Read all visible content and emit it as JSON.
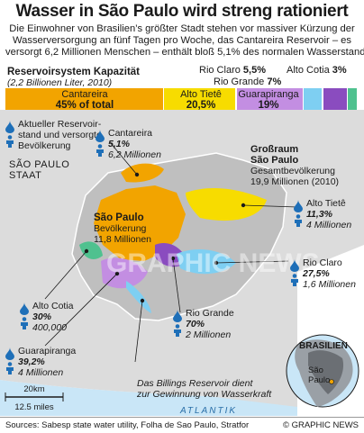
{
  "title": "Wasser in São Paulo wird streng rationiert",
  "intro": [
    "Die Einwohner von Brasilien’s größter Stadt stehen vor massiver Kürzung der",
    "Wasserversorgung an fünf Tagen pro Woche,  das Cantareira Reservoir – es",
    "versorgt 6,2 Millionen Menschen – enthält bloß 5,1% des normalen Wasserstandes"
  ],
  "capacity": {
    "title": "Reservoirsystem Kapazität",
    "subtitle": "(2,2 Billionen Liter, 2010)",
    "segments": [
      {
        "name": "Cantareira",
        "value_label": "45% of total",
        "percent": 45,
        "color": "#f2a400"
      },
      {
        "name": "Alto Tietê",
        "value_label": "20,5%",
        "percent": 20.5,
        "color": "#f7dc00"
      },
      {
        "name": "Guarapiranga",
        "value_label": "19%",
        "percent": 19,
        "color": "#c38ee2"
      },
      {
        "name": "Rio Claro",
        "value_label": "5,5%",
        "percent": 5.5,
        "color": "#7ecff2"
      },
      {
        "name": "Rio Grande",
        "value_label": "7%",
        "percent": 7,
        "color": "#8a4cbf"
      },
      {
        "name": "Alto Cotia",
        "value_label": "3%",
        "percent": 3,
        "color": "#4fc18f"
      }
    ]
  },
  "legend": {
    "pin_label": [
      "Aktueller Reservoir-",
      "stand und versorgte",
      "Bevölkerung"
    ]
  },
  "map": {
    "state_label": [
      "SÃO PAULO",
      "STAAT"
    ],
    "city_label": "São Paulo",
    "city_pop": [
      "Bevölkerung",
      "11,8 Millionen"
    ],
    "metro_label": [
      "Großraum",
      "São Paulo"
    ],
    "metro_pop": [
      "Gesamtbevölkerung",
      "19,9 Millionen (2010)"
    ],
    "ocean": "ATLANTIK",
    "billings_note": [
      "Das Billings Reservoir dient",
      "zur Gewinnung von Wasserkraft"
    ],
    "scale_km": "20km",
    "scale_mi": "12.5 miles",
    "watermark": "GRAPHIC NEWS",
    "inset_country": "BRASILIEN",
    "inset_city": [
      "São",
      "Paulo"
    ]
  },
  "reservoirs": [
    {
      "name": "Cantareira",
      "level": "5,1%",
      "pop": "6,2 Millionen"
    },
    {
      "name": "Alto Tietê",
      "level": "11,3%",
      "pop": "4 Millionen"
    },
    {
      "name": "Rio Claro",
      "level": "27,5%",
      "pop": "1,6 Millionen"
    },
    {
      "name": "Rio Grande",
      "level": "70%",
      "pop": "2 Millionen"
    },
    {
      "name": "Alto Cotia",
      "level": "30%",
      "pop": "400,000"
    },
    {
      "name": "Guarapiranga",
      "level": "39,2%",
      "pop": "4 Millionen"
    }
  ],
  "footer": {
    "sources": "Sources: Sabesp state water utility, Folha de Sao Paulo, Stratfor",
    "credit": "© GRAPHIC NEWS"
  },
  "colors": {
    "blue": "#1e6fb8",
    "land": "#d8d8d8",
    "metro": "#bdbdbd",
    "city": "#f2a400",
    "water": "#c9e6f7"
  }
}
